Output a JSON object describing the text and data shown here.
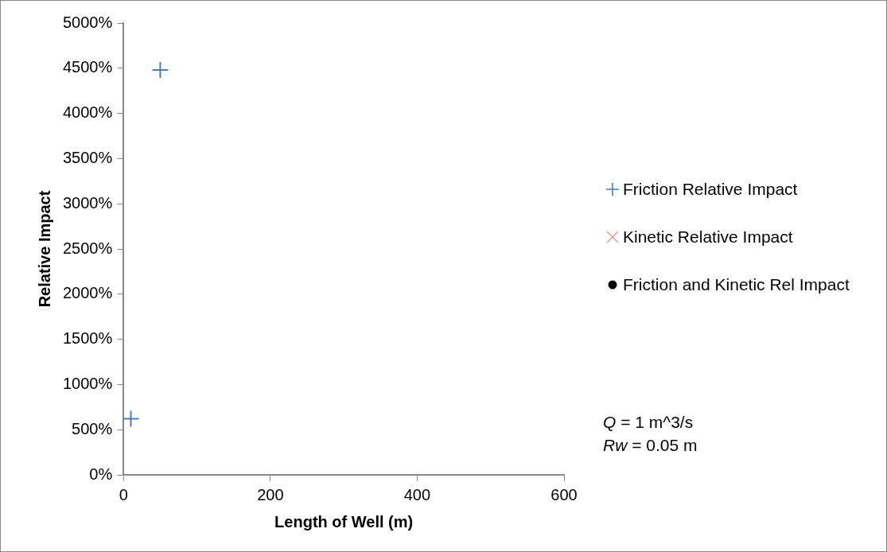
{
  "chart_data": {
    "type": "scatter",
    "xlabel": "Length of Well (m)",
    "ylabel": "Relative Impact",
    "xlim": [
      0,
      600
    ],
    "xticks": [
      0,
      200,
      400,
      600
    ],
    "ylim": [
      0,
      5000
    ],
    "yticks": [
      {
        "value": 0,
        "label": "0%"
      },
      {
        "value": 500,
        "label": "500%"
      },
      {
        "value": 1000,
        "label": "1000%"
      },
      {
        "value": 1500,
        "label": "1500%"
      },
      {
        "value": 2000,
        "label": "2000%"
      },
      {
        "value": 2500,
        "label": "2500%"
      },
      {
        "value": 3000,
        "label": "3000%"
      },
      {
        "value": 3500,
        "label": "3500%"
      },
      {
        "value": 4000,
        "label": "4000%"
      },
      {
        "value": 4500,
        "label": "4500%"
      },
      {
        "value": 5000,
        "label": "5000%"
      }
    ],
    "grid": false,
    "legend": "right",
    "series": [
      {
        "name": "Friction Relative Impact",
        "color": "#4a7ebb",
        "marker": "cross",
        "x": [
          10,
          50
        ],
        "values": [
          620,
          4480
        ]
      },
      {
        "name": "Kinetic Relative Impact",
        "color": "#e6908c",
        "marker": "x"
      },
      {
        "name": "Friction and Kinetic Rel Impact",
        "color": "#000000",
        "marker": "circle"
      }
    ],
    "annotations": [
      "Q = 1 m^3/s",
      "Rw = 0.05 m"
    ]
  }
}
